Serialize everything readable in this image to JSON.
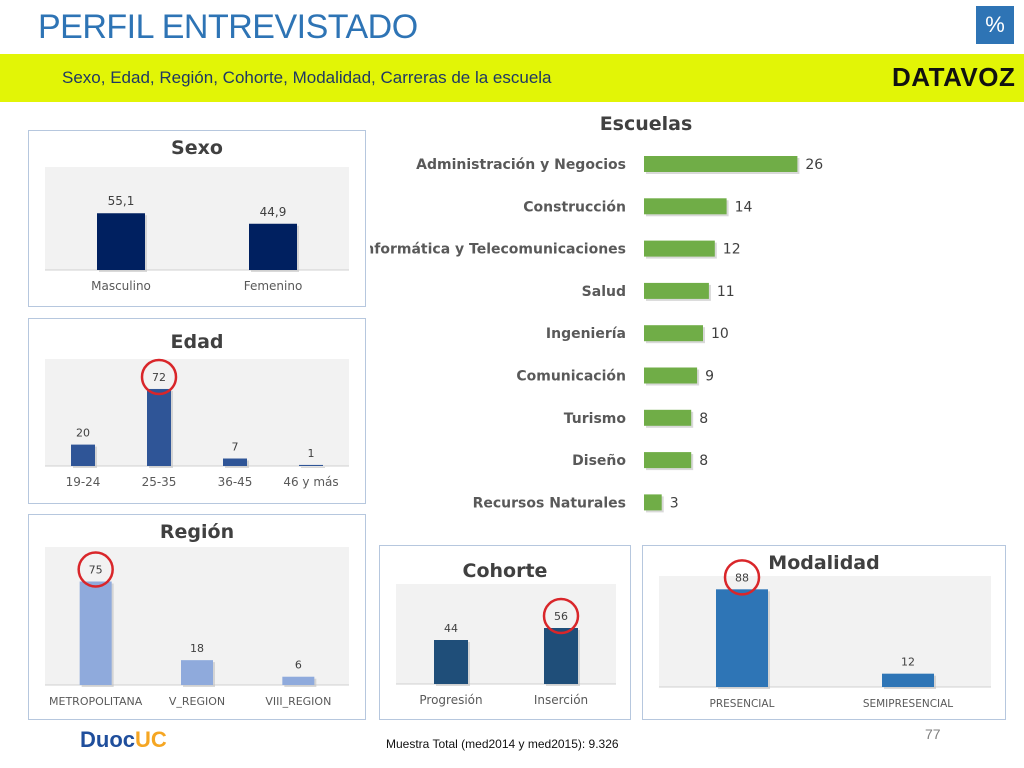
{
  "header": {
    "title": "PERFIL ENTREVISTADO",
    "percent_badge": "%",
    "subtitle": "Sexo, Edad, Región, Cohorte, Modalidad, Carreras de la escuela",
    "logo": "DATAVOZ"
  },
  "footer": {
    "sample": "Muestra Total (med2014 y med2015): 9.326",
    "page_number": "77",
    "brand_a": "Duoc",
    "brand_b": "UC"
  },
  "colors": {
    "sexo": "#002060",
    "edad": "#2f5597",
    "region": "#8faadc",
    "cohorte": "#1f4e79",
    "modalidad": "#2e75b6",
    "escuelas": "#70ad47",
    "highlight_circle": "#d9262a"
  },
  "chart_data": [
    {
      "id": "sexo",
      "type": "bar",
      "title": "Sexo",
      "categories": [
        "Masculino",
        "Femenino"
      ],
      "values": [
        55.1,
        44.9
      ],
      "labels": [
        "55,1",
        "44,9"
      ],
      "highlighted": []
    },
    {
      "id": "edad",
      "type": "bar",
      "title": "Edad",
      "categories": [
        "19-24",
        "25-35",
        "36-45",
        "46 y más"
      ],
      "values": [
        20,
        72,
        7,
        1
      ],
      "labels": [
        "20",
        "72",
        "7",
        "1"
      ],
      "highlighted": [
        1
      ]
    },
    {
      "id": "region",
      "type": "bar",
      "title": "Región",
      "categories": [
        "METROPOLITANA",
        "V_REGION",
        "VIII_REGION"
      ],
      "values": [
        75,
        18,
        6
      ],
      "labels": [
        "75",
        "18",
        "6"
      ],
      "highlighted": [
        0
      ]
    },
    {
      "id": "cohorte",
      "type": "bar",
      "title": "Cohorte",
      "categories": [
        "Progresión",
        "Inserción"
      ],
      "values": [
        44,
        56
      ],
      "labels": [
        "44",
        "56"
      ],
      "highlighted": [
        1
      ]
    },
    {
      "id": "modalidad",
      "type": "bar",
      "title": "Modalidad",
      "categories": [
        "PRESENCIAL",
        "SEMIPRESENCIAL"
      ],
      "values": [
        88,
        12
      ],
      "labels": [
        "88",
        "12"
      ],
      "highlighted": [
        0
      ]
    },
    {
      "id": "escuelas",
      "type": "bar",
      "orientation": "horizontal",
      "title": "Escuelas",
      "categories": [
        "Administración y Negocios",
        "Construcción",
        "Informática y Telecomunicaciones",
        "Salud",
        "Ingeniería",
        "Comunicación",
        "Turismo",
        "Diseño",
        "Recursos Naturales"
      ],
      "values": [
        26,
        14,
        12,
        11,
        10,
        9,
        8,
        8,
        3
      ],
      "labels": [
        "26",
        "14",
        "12",
        "11",
        "10",
        "9",
        "8",
        "8",
        "3"
      ],
      "highlighted": []
    }
  ]
}
